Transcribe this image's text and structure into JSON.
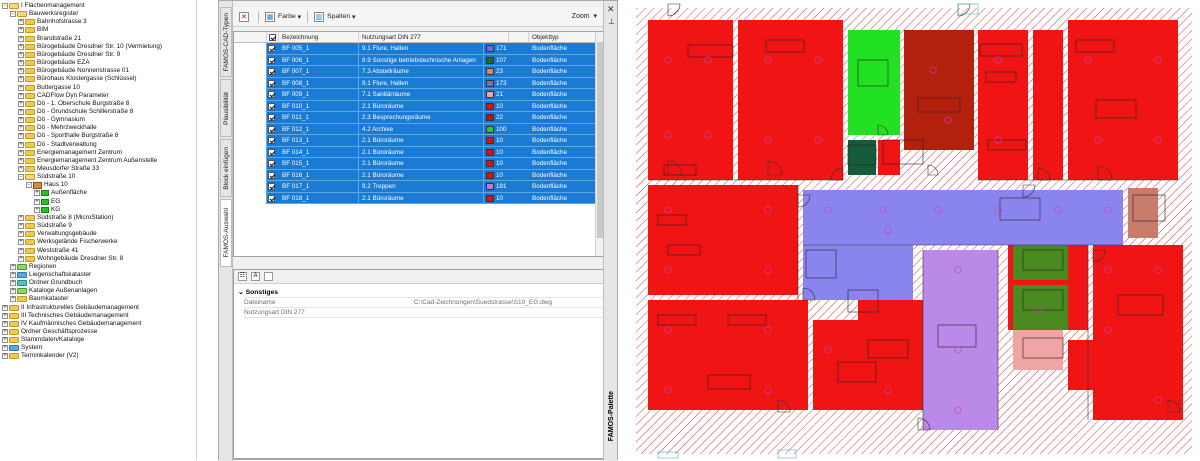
{
  "tree": {
    "items": [
      {
        "label": "I  Flächenmanagement",
        "indent": 0,
        "exp": "-",
        "icon": "folder-open"
      },
      {
        "label": "Bauwerksregister",
        "indent": 1,
        "exp": "-",
        "icon": "folder-open"
      },
      {
        "label": "Bahnhofstrasse 3",
        "indent": 2,
        "exp": "+",
        "icon": "folder"
      },
      {
        "label": "BIM",
        "indent": 2,
        "exp": "+",
        "icon": "folder"
      },
      {
        "label": "Brandstraße 21",
        "indent": 2,
        "exp": "+",
        "icon": "folder"
      },
      {
        "label": "Bürogebäude Dresdner Str. 10 (Vermietung)",
        "indent": 2,
        "exp": "+",
        "icon": "folder"
      },
      {
        "label": "Bürogebäude Dresdner Str. 9",
        "indent": 2,
        "exp": "+",
        "icon": "folder"
      },
      {
        "label": "Bürogebäude EZA",
        "indent": 2,
        "exp": "+",
        "icon": "folder"
      },
      {
        "label": "Bürogebäude Nonnenstrasse 01",
        "indent": 2,
        "exp": "+",
        "icon": "folder"
      },
      {
        "label": "Bürohaus Klostergasse (Schlüssel)",
        "indent": 2,
        "exp": "+",
        "icon": "folder"
      },
      {
        "label": "Buttergasse 10",
        "indent": 2,
        "exp": "+",
        "icon": "folder"
      },
      {
        "label": "CADFlow Dyn Parameter",
        "indent": 2,
        "exp": "+",
        "icon": "folder"
      },
      {
        "label": "Dö - 1. Oberschule Burgstraße 8",
        "indent": 2,
        "exp": "+",
        "icon": "folder"
      },
      {
        "label": "Dö - Grundschule Schillerstraße 8",
        "indent": 2,
        "exp": "+",
        "icon": "folder"
      },
      {
        "label": "Dö - Gymnasium",
        "indent": 2,
        "exp": "+",
        "icon": "folder"
      },
      {
        "label": "Dö - Mehrzweckhalle",
        "indent": 2,
        "exp": "+",
        "icon": "folder"
      },
      {
        "label": "Dö - Sporthalle Burgstraße 8",
        "indent": 2,
        "exp": "+",
        "icon": "folder"
      },
      {
        "label": "Dö - Stadtverwaltung",
        "indent": 2,
        "exp": "+",
        "icon": "folder"
      },
      {
        "label": "Energiemanagement Zentrum",
        "indent": 2,
        "exp": "+",
        "icon": "folder"
      },
      {
        "label": "Energiemanagement Zentrum Außenstelle",
        "indent": 2,
        "exp": "+",
        "icon": "folder"
      },
      {
        "label": "Meusdorfer Straße 33",
        "indent": 2,
        "exp": "+",
        "icon": "folder"
      },
      {
        "label": "Südstraße 10",
        "indent": 2,
        "exp": "-",
        "icon": "folder-open"
      },
      {
        "label": "Haus 10",
        "indent": 3,
        "exp": "-",
        "icon": "house"
      },
      {
        "label": "Außenfläche",
        "indent": 4,
        "exp": "+",
        "icon": "green"
      },
      {
        "label": "EG",
        "indent": 4,
        "exp": "+",
        "icon": "green"
      },
      {
        "label": "KG",
        "indent": 4,
        "exp": "+",
        "icon": "green"
      },
      {
        "label": "Südstraße 8 (MicroStation)",
        "indent": 2,
        "exp": "+",
        "icon": "folder"
      },
      {
        "label": "Südstraße 9",
        "indent": 2,
        "exp": "+",
        "icon": "folder"
      },
      {
        "label": "Verwaltungsgebäude",
        "indent": 2,
        "exp": "+",
        "icon": "folder"
      },
      {
        "label": "Werksgelände Fischerwerke",
        "indent": 2,
        "exp": "+",
        "icon": "folder"
      },
      {
        "label": "Weststraße 41",
        "indent": 2,
        "exp": "+",
        "icon": "folder"
      },
      {
        "label": "Wohngebäude Dresdner Str. 8",
        "indent": 2,
        "exp": "+",
        "icon": "folder"
      },
      {
        "label": "Regionen",
        "indent": 1,
        "exp": "+",
        "icon": "green-folder"
      },
      {
        "label": "Liegenschaftskataster",
        "indent": 1,
        "exp": "+",
        "icon": "blue-folder"
      },
      {
        "label": "Ordner Grundbuch",
        "indent": 1,
        "exp": "+",
        "icon": "teal-folder"
      },
      {
        "label": "Kataloge Außenanlagen",
        "indent": 1,
        "exp": "+",
        "icon": "green-folder"
      },
      {
        "label": "Baumkataster",
        "indent": 1,
        "exp": "+",
        "icon": "folder"
      },
      {
        "label": "II  Infrastrukturelles Gebäudemanagement",
        "indent": 0,
        "exp": "+",
        "icon": "folder"
      },
      {
        "label": "III Technisches Gebäudemanagement",
        "indent": 0,
        "exp": "+",
        "icon": "folder"
      },
      {
        "label": "IV Kaufmännisches Gebäudemanagement",
        "indent": 0,
        "exp": "+",
        "icon": "folder"
      },
      {
        "label": "Ordner Geschäftsprozesse",
        "indent": 0,
        "exp": "+",
        "icon": "folder"
      },
      {
        "label": "Stammdaten/Kataloge",
        "indent": 0,
        "exp": "+",
        "icon": "folder"
      },
      {
        "label": "System",
        "indent": 0,
        "exp": "+",
        "icon": "blue-folder"
      },
      {
        "label": "Terminkalender (V2)",
        "indent": 0,
        "exp": "+",
        "icon": "folder"
      }
    ]
  },
  "palette": {
    "title": "FAMOS-Palette",
    "vtabs": [
      "FAMOS-CAD-Typen",
      "Plausibilität",
      "Block einfügen",
      "FAMOS-Auswahl"
    ],
    "toolbar": {
      "farbe": "Farbe",
      "spalten": "Spalten",
      "zoom": "Zoom"
    },
    "columns": {
      "bezeichnung": "Bezeichnung",
      "nutzungsart": "Nutzungsart DIN 277",
      "objekttyp": "Objekttyp"
    },
    "rows": [
      {
        "bez": "BF 005_1",
        "nutz": "9.1 Flure, Hallen",
        "color": "#6d6de0",
        "num": "171",
        "typ": "Bodenfläche"
      },
      {
        "bez": "BF 006_1",
        "nutz": "8.9 Sonstige betriebstechnische Anlagen",
        "color": "#1c6b2e",
        "num": "107",
        "typ": "Bodenfläche"
      },
      {
        "bez": "BF 007_1",
        "nutz": "7.3 Abstellräume",
        "color": "#c98d7a",
        "num": "23",
        "typ": "Bodenfläche"
      },
      {
        "bez": "BF 008_1",
        "nutz": "9.1 Flure, Hallen",
        "color": "#6d6de0",
        "num": "173",
        "typ": "Bodenfläche"
      },
      {
        "bez": "BF 009_1",
        "nutz": "7.1 Sanitärräume",
        "color": "#f0a0b0",
        "num": "21",
        "typ": "Bodenfläche"
      },
      {
        "bez": "BF 010_1",
        "nutz": "2.1 Büroräume",
        "color": "#e01010",
        "num": "10",
        "typ": "Bodenfläche"
      },
      {
        "bez": "BF 011_1",
        "nutz": "2.3 Besprechungsräume",
        "color": "#c01010",
        "num": "22",
        "typ": "Bodenfläche"
      },
      {
        "bez": "BF 012_1",
        "nutz": "4.2 Archive",
        "color": "#22d022",
        "num": "100",
        "typ": "Bodenfläche"
      },
      {
        "bez": "BF 013_1",
        "nutz": "2.1 Büroräume",
        "color": "#e01010",
        "num": "10",
        "typ": "Bodenfläche"
      },
      {
        "bez": "BF 014_1",
        "nutz": "2.1 Büroräume",
        "color": "#e01010",
        "num": "10",
        "typ": "Bodenfläche"
      },
      {
        "bez": "BF 015_1",
        "nutz": "2.1 Büroräume",
        "color": "#e01010",
        "num": "10",
        "typ": "Bodenfläche"
      },
      {
        "bez": "BF 016_1",
        "nutz": "2.1 Büroräume",
        "color": "#e01010",
        "num": "10",
        "typ": "Bodenfläche"
      },
      {
        "bez": "BF 017_1",
        "nutz": "9.2 Treppen",
        "color": "#b080e0",
        "num": "181",
        "typ": "Bodenfläche"
      },
      {
        "bez": "BF 018_1",
        "nutz": "2.1 Büroräume",
        "color": "#e01010",
        "num": "10",
        "typ": "Bodenfläche"
      }
    ],
    "properties": {
      "category": "Sonstiges",
      "rows": [
        {
          "label": "Dateiname",
          "value": "C:\\Cad-Zeichnungen\\Suedstrasse\\S10_EG.dwg"
        },
        {
          "label": "Nutzungsart DIN 277",
          "value": ""
        }
      ]
    }
  },
  "cad": {
    "colors": {
      "office": "#f01414",
      "corridor": "#8a84ee",
      "stairs": "#b98ae8",
      "archive": "#22e022",
      "meeting": "#b4200e",
      "tech": "#145c3c",
      "sanitary": "#f0a4a4",
      "kitchen": "#4a8a20",
      "storage": "#c97b6c",
      "hatch": "#c44",
      "wall": "#fff"
    }
  }
}
